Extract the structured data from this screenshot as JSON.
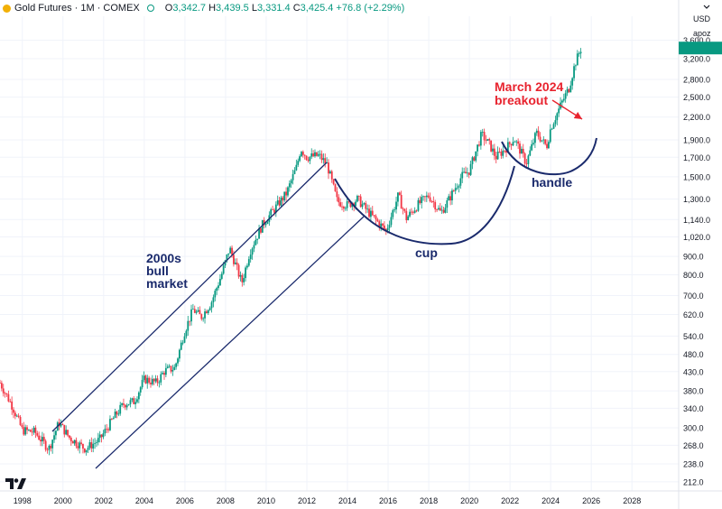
{
  "header": {
    "symbol": "Gold Futures · 1M · COMEX",
    "ohlc_label_o": "O",
    "ohlc_o": "3,342.7",
    "ohlc_label_h": "H",
    "ohlc_h": "3,439.5",
    "ohlc_label_l": "L",
    "ohlc_l": "3,331.4",
    "ohlc_label_c": "C",
    "ohlc_c": "3,425.4",
    "change": "+76.8 (+2.29%)",
    "currency": "USD",
    "unit": "apoz"
  },
  "colors": {
    "up": "#089981",
    "down": "#f23645",
    "annotation": "#1a2a6c",
    "breakout": "#e8232e",
    "grid": "#f0f3fa",
    "axis_text": "#131722"
  },
  "annotations": {
    "bull_market": [
      "2000s",
      "bull",
      "market"
    ],
    "cup": "cup",
    "handle": "handle",
    "breakout": [
      "March 2024",
      "breakout"
    ]
  },
  "branding": {
    "logo": "tradingview-logo-icon"
  },
  "chart_data": {
    "type": "candlestick",
    "interval": "monthly",
    "y_scale": "log",
    "y_ticks": [
      212,
      238,
      268,
      300,
      340,
      380,
      430,
      480,
      540,
      620,
      700,
      800,
      900,
      1020,
      1140,
      1300,
      1500,
      1700,
      1900,
      2200,
      2500,
      2800,
      3200,
      3600
    ],
    "y_tick_labels": [
      "212.0",
      "238.0",
      "268.0",
      "300.0",
      "340.0",
      "380.0",
      "430.0",
      "480.0",
      "540.0",
      "620.0",
      "700.0",
      "800.0",
      "900.0",
      "1,020.0",
      "1,140.0",
      "1,300.0",
      "1,500.0",
      "1,700.0",
      "1,900.0",
      "2,200.0",
      "2,500.0",
      "2,800.0",
      "3,200.0",
      "3,600.0"
    ],
    "x_ticks": [
      1998,
      2000,
      2002,
      2004,
      2006,
      2008,
      2010,
      2012,
      2014,
      2016,
      2018,
      2020,
      2022,
      2024,
      2026,
      2028
    ],
    "x_range": [
      1996.9,
      2030.3
    ],
    "y_range": [
      200,
      4200
    ],
    "price_path": [
      [
        1996.9,
        400
      ],
      [
        1997.5,
        345
      ],
      [
        1998.0,
        295
      ],
      [
        1998.6,
        292
      ],
      [
        1999.3,
        262
      ],
      [
        1999.8,
        310
      ],
      [
        2000.3,
        282
      ],
      [
        2001.1,
        262
      ],
      [
        2001.8,
        278
      ],
      [
        2002.5,
        320
      ],
      [
        2003.0,
        350
      ],
      [
        2003.5,
        355
      ],
      [
        2004.0,
        410
      ],
      [
        2004.6,
        400
      ],
      [
        2005.0,
        432
      ],
      [
        2005.5,
        440
      ],
      [
        2006.0,
        560
      ],
      [
        2006.4,
        640
      ],
      [
        2006.8,
        610
      ],
      [
        2007.3,
        670
      ],
      [
        2007.8,
        800
      ],
      [
        2008.2,
        950
      ],
      [
        2008.8,
        760
      ],
      [
        2009.2,
        930
      ],
      [
        2009.8,
        1100
      ],
      [
        2010.5,
        1240
      ],
      [
        2011.0,
        1350
      ],
      [
        2011.5,
        1600
      ],
      [
        2011.7,
        1800
      ],
      [
        2012.0,
        1700
      ],
      [
        2012.6,
        1720
      ],
      [
        2013.0,
        1620
      ],
      [
        2013.5,
        1280
      ],
      [
        2014.0,
        1250
      ],
      [
        2014.5,
        1300
      ],
      [
        2015.0,
        1200
      ],
      [
        2015.9,
        1060
      ],
      [
        2016.5,
        1330
      ],
      [
        2016.9,
        1150
      ],
      [
        2017.5,
        1260
      ],
      [
        2018.0,
        1330
      ],
      [
        2018.6,
        1190
      ],
      [
        2019.0,
        1300
      ],
      [
        2019.6,
        1500
      ],
      [
        2020.0,
        1560
      ],
      [
        2020.6,
        1970
      ],
      [
        2021.0,
        1840
      ],
      [
        2021.3,
        1700
      ],
      [
        2021.8,
        1800
      ],
      [
        2022.2,
        1920
      ],
      [
        2022.8,
        1640
      ],
      [
        2023.3,
        1990
      ],
      [
        2023.8,
        1820
      ],
      [
        2024.0,
        2050
      ],
      [
        2024.5,
        2380
      ],
      [
        2024.9,
        2650
      ],
      [
        2025.2,
        3100
      ],
      [
        2025.5,
        3425
      ]
    ],
    "last_price": 3425.4
  }
}
